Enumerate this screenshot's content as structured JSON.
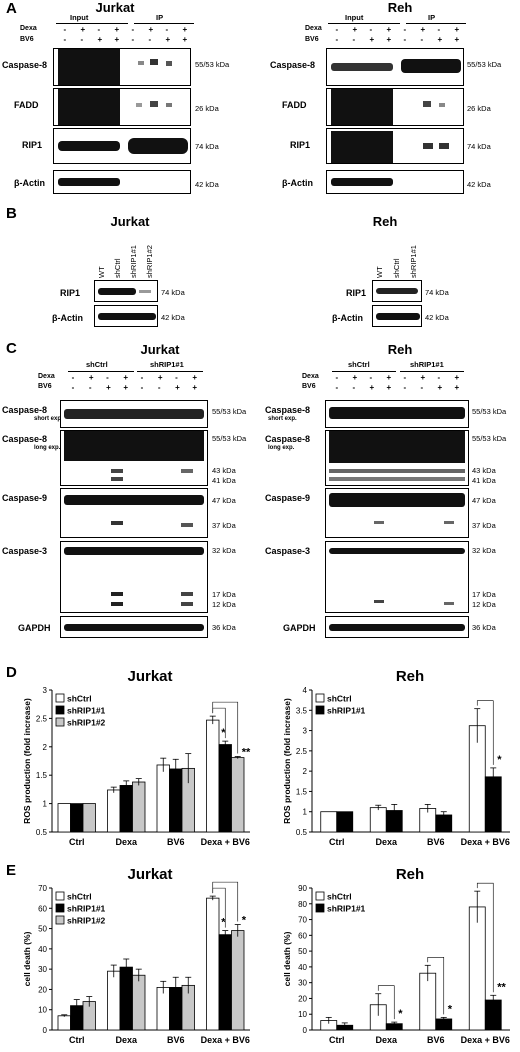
{
  "panels": {
    "A": {
      "letter": "A",
      "left": {
        "cell_line": "Jurkat",
        "groups": [
          "Input",
          "IP"
        ],
        "row_labels": [
          "Dexa",
          "BV6"
        ],
        "lanes": [
          [
            "-",
            "+",
            "-",
            "+",
            "-",
            "+",
            "-",
            "+"
          ],
          [
            "-",
            "-",
            "+",
            "+",
            "-",
            "-",
            "+",
            "+"
          ]
        ],
        "blots": [
          "Caspase-8",
          "FADD",
          "RIP1",
          "β-Actin"
        ],
        "mw": [
          "55/53 kDa",
          "26 kDa",
          "74 kDa",
          "42 kDa"
        ]
      },
      "right": {
        "cell_line": "Reh",
        "groups": [
          "Input",
          "IP"
        ],
        "row_labels": [
          "Dexa",
          "BV6"
        ],
        "lanes": [
          [
            "-",
            "+",
            "-",
            "+",
            "-",
            "+",
            "-",
            "+"
          ],
          [
            "-",
            "-",
            "+",
            "+",
            "-",
            "-",
            "+",
            "+"
          ]
        ],
        "blots": [
          "Caspase-8",
          "FADD",
          "RIP1",
          "β-Actin"
        ],
        "mw": [
          "55/53 kDa",
          "26 kDa",
          "74 kDa",
          "42 kDa"
        ]
      }
    },
    "B": {
      "letter": "B",
      "left": {
        "cell_line": "Jurkat",
        "lanes": [
          "WT",
          "shCtrl",
          "shRIP1#1",
          "shRIP1#2"
        ],
        "blots": [
          "RIP1",
          "β-Actin"
        ],
        "mw": [
          "74 kDa",
          "42 kDa"
        ]
      },
      "right": {
        "cell_line": "Reh",
        "lanes": [
          "WT",
          "shCtrl",
          "shRIP1#1"
        ],
        "blots": [
          "RIP1",
          "β-Actin"
        ],
        "mw": [
          "74 kDa",
          "42 kDa"
        ]
      }
    },
    "C": {
      "letter": "C",
      "left": {
        "cell_line": "Jurkat",
        "groups": [
          "shCtrl",
          "shRIP1#1"
        ],
        "row_labels": [
          "Dexa",
          "BV6"
        ],
        "lanes": [
          [
            "-",
            "+",
            "-",
            "+",
            "-",
            "+",
            "-",
            "+"
          ],
          [
            "-",
            "-",
            "+",
            "+",
            "-",
            "-",
            "+",
            "+"
          ]
        ],
        "blots": [
          "Caspase-8",
          "Caspase-8",
          "Caspase-9",
          "Caspase-3",
          "GAPDH"
        ],
        "blot_notes": [
          "short exp.",
          "long exp.",
          "",
          "",
          ""
        ],
        "mw": [
          "55/53 kDa",
          "55/53 kDa",
          "43 kDa",
          "41 kDa",
          "47 kDa",
          "37 kDa",
          "32 kDa",
          "17 kDa",
          "12 kDa",
          "36 kDa"
        ]
      },
      "right": {
        "cell_line": "Reh",
        "groups": [
          "shCtrl",
          "shRIP1#1"
        ],
        "row_labels": [
          "Dexa",
          "BV6"
        ],
        "lanes": [
          [
            "-",
            "+",
            "-",
            "+",
            "-",
            "+",
            "-",
            "+"
          ],
          [
            "-",
            "-",
            "+",
            "+",
            "-",
            "-",
            "+",
            "+"
          ]
        ],
        "blots": [
          "Caspase-8",
          "Caspase-8",
          "Caspase-9",
          "Caspase-3",
          "GAPDH"
        ],
        "blot_notes": [
          "short exp.",
          "long exp.",
          "",
          "",
          ""
        ],
        "mw": [
          "55/53 kDa",
          "55/53 kDa",
          "43 kDa",
          "41 kDa",
          "47 kDa",
          "37 kDa",
          "32 kDa",
          "17 kDa",
          "12 kDa",
          "36 kDa"
        ]
      }
    },
    "D": {
      "letter": "D"
    },
    "E": {
      "letter": "E"
    }
  },
  "chart_data": [
    {
      "id": "D-jurkat",
      "type": "bar",
      "title": "Jurkat",
      "ylabel": "ROS production (fold increase)",
      "categories": [
        "Ctrl",
        "Dexa",
        "BV6",
        "Dexa + BV6"
      ],
      "ylim": [
        0.5,
        3
      ],
      "yticks": [
        0.5,
        1,
        1.5,
        2,
        2.5,
        3
      ],
      "series": [
        {
          "name": "shCtrl",
          "color": "#ffffff",
          "values": [
            1.0,
            1.24,
            1.68,
            2.47
          ],
          "errors": [
            0,
            0.05,
            0.12,
            0.07
          ]
        },
        {
          "name": "shRIP1#1",
          "color": "#000000",
          "values": [
            1.0,
            1.32,
            1.61,
            2.04
          ],
          "errors": [
            0,
            0.08,
            0.17,
            0.06
          ]
        },
        {
          "name": "shRIP1#2",
          "color": "#c8c8c8",
          "values": [
            1.0,
            1.38,
            1.62,
            1.81
          ],
          "errors": [
            0,
            0.06,
            0.26,
            0.02
          ]
        }
      ],
      "significance": [
        "*",
        "**"
      ]
    },
    {
      "id": "D-reh",
      "type": "bar",
      "title": "Reh",
      "ylabel": "ROS production (fold increase)",
      "categories": [
        "Ctrl",
        "Dexa",
        "BV6",
        "Dexa + BV6"
      ],
      "ylim": [
        0.5,
        4
      ],
      "yticks": [
        0.5,
        1,
        1.5,
        2,
        2.5,
        3,
        3.5,
        4
      ],
      "series": [
        {
          "name": "shCtrl",
          "color": "#ffffff",
          "values": [
            1.0,
            1.1,
            1.08,
            3.12
          ],
          "errors": [
            0,
            0.06,
            0.1,
            0.42
          ]
        },
        {
          "name": "shRIP1#1",
          "color": "#000000",
          "values": [
            1.0,
            1.03,
            0.92,
            1.86
          ],
          "errors": [
            0,
            0.15,
            0.08,
            0.22
          ]
        }
      ],
      "significance": [
        "*"
      ]
    },
    {
      "id": "E-jurkat",
      "type": "bar",
      "title": "Jurkat",
      "ylabel": "cell death (%)",
      "categories": [
        "Ctrl",
        "Dexa",
        "BV6",
        "Dexa + BV6"
      ],
      "ylim": [
        0,
        70
      ],
      "yticks": [
        0,
        10,
        20,
        30,
        40,
        50,
        60,
        70
      ],
      "series": [
        {
          "name": "shCtrl",
          "color": "#ffffff",
          "values": [
            7,
            29,
            21,
            65
          ],
          "errors": [
            0.5,
            3,
            3,
            1
          ]
        },
        {
          "name": "shRIP1#1",
          "color": "#000000",
          "values": [
            12,
            31,
            21,
            47
          ],
          "errors": [
            3,
            4,
            5,
            2
          ]
        },
        {
          "name": "shRIP1#2",
          "color": "#c8c8c8",
          "values": [
            14,
            27,
            22,
            49
          ],
          "errors": [
            2.5,
            3,
            4,
            3
          ]
        }
      ],
      "significance": [
        "*",
        "*"
      ]
    },
    {
      "id": "E-reh",
      "type": "bar",
      "title": "Reh",
      "ylabel": "cell death (%)",
      "categories": [
        "Ctrl",
        "Dexa",
        "BV6",
        "Dexa + BV6"
      ],
      "ylim": [
        0,
        90
      ],
      "yticks": [
        0,
        10,
        20,
        30,
        40,
        50,
        60,
        70,
        80,
        90
      ],
      "series": [
        {
          "name": "shCtrl",
          "color": "#ffffff",
          "values": [
            6,
            16,
            36,
            78
          ],
          "errors": [
            2,
            7,
            5,
            10
          ]
        },
        {
          "name": "shRIP1#1",
          "color": "#000000",
          "values": [
            3,
            4,
            7,
            19
          ],
          "errors": [
            1.5,
            1,
            1,
            3
          ]
        }
      ],
      "significance": [
        "*",
        "*",
        "**"
      ]
    }
  ]
}
